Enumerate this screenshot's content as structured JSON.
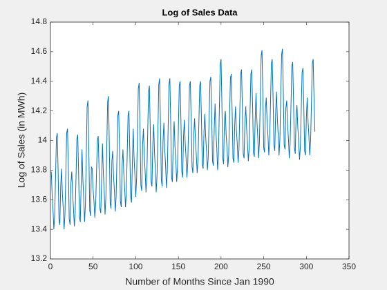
{
  "chart_data": {
    "type": "line",
    "title": "Log of Sales Data",
    "xlabel": "Number of Months Since Jan 1990",
    "ylabel": "Log of Sales (in MWh)",
    "xlim": [
      0,
      350
    ],
    "xticks": [
      0,
      50,
      100,
      150,
      200,
      250,
      300,
      350
    ],
    "ylim": [
      13.2,
      14.8
    ],
    "yticks": [
      13.2,
      13.4,
      13.6,
      13.8,
      14,
      14.2,
      14.4,
      14.6,
      14.8
    ],
    "grid": false,
    "x": [
      1,
      2,
      3,
      4,
      5,
      6,
      7,
      8,
      9,
      10,
      11,
      12,
      13,
      14,
      15,
      16,
      17,
      18,
      19,
      20,
      21,
      22,
      23,
      24,
      25,
      26,
      27,
      28,
      29,
      30,
      31,
      32,
      33,
      34,
      35,
      36,
      37,
      38,
      39,
      40,
      41,
      42,
      43,
      44,
      45,
      46,
      47,
      48,
      49,
      50,
      51,
      52,
      53,
      54,
      55,
      56,
      57,
      58,
      59,
      60,
      61,
      62,
      63,
      64,
      65,
      66,
      67,
      68,
      69,
      70,
      71,
      72,
      73,
      74,
      75,
      76,
      77,
      78,
      79,
      80,
      81,
      82,
      83,
      84,
      85,
      86,
      87,
      88,
      89,
      90,
      91,
      92,
      93,
      94,
      95,
      96,
      97,
      98,
      99,
      100,
      101,
      102,
      103,
      104,
      105,
      106,
      107,
      108,
      109,
      110,
      111,
      112,
      113,
      114,
      115,
      116,
      117,
      118,
      119,
      120,
      121,
      122,
      123,
      124,
      125,
      126,
      127,
      128,
      129,
      130,
      131,
      132,
      133,
      134,
      135,
      136,
      137,
      138,
      139,
      140,
      141,
      142,
      143,
      144,
      145,
      146,
      147,
      148,
      149,
      150,
      151,
      152,
      153,
      154,
      155,
      156,
      157,
      158,
      159,
      160,
      161,
      162,
      163,
      164,
      165,
      166,
      167,
      168,
      169,
      170,
      171,
      172,
      173,
      174,
      175,
      176,
      177,
      178,
      179,
      180,
      181,
      182,
      183,
      184,
      185,
      186,
      187,
      188,
      189,
      190,
      191,
      192,
      193,
      194,
      195,
      196,
      197,
      198,
      199,
      200,
      201,
      202,
      203,
      204,
      205,
      206,
      207,
      208,
      209,
      210,
      211,
      212,
      213,
      214,
      215,
      216,
      217,
      218,
      219,
      220,
      221,
      222,
      223,
      224,
      225,
      226,
      227,
      228,
      229,
      230,
      231,
      232,
      233,
      234,
      235,
      236,
      237,
      238,
      239,
      240,
      241,
      242,
      243,
      244,
      245,
      246,
      247,
      248,
      249,
      250,
      251,
      252,
      253,
      254,
      255,
      256,
      257,
      258,
      259,
      260,
      261,
      262,
      263,
      264,
      265,
      266,
      267,
      268,
      269,
      270,
      271,
      272,
      273,
      274,
      275,
      276,
      277,
      278,
      279,
      280,
      281,
      282,
      283,
      284,
      285,
      286,
      287,
      288,
      289,
      290,
      291,
      292,
      293,
      294,
      295,
      296,
      297,
      298,
      299,
      300,
      301,
      302,
      303,
      304,
      305,
      306,
      307,
      308,
      309,
      310
    ],
    "series": [
      {
        "name": "Log of Sales",
        "color": "#0072bd",
        "values": [
          13.79,
          13.63,
          13.53,
          13.4,
          13.5,
          13.76,
          14.02,
          14.05,
          13.79,
          13.47,
          13.43,
          13.69,
          13.81,
          13.64,
          13.54,
          13.4,
          13.5,
          13.77,
          14.05,
          14.08,
          13.81,
          13.47,
          13.43,
          13.71,
          13.79,
          13.64,
          13.54,
          13.42,
          13.51,
          13.76,
          14.01,
          14.04,
          13.79,
          13.48,
          13.45,
          13.7,
          13.94,
          13.74,
          13.61,
          13.45,
          13.57,
          13.9,
          14.23,
          14.27,
          13.94,
          13.53,
          13.49,
          13.82,
          13.81,
          13.67,
          13.59,
          13.48,
          13.56,
          13.78,
          14.0,
          14.03,
          13.81,
          13.54,
          13.51,
          13.73,
          13.98,
          13.78,
          13.66,
          13.5,
          13.62,
          13.94,
          14.26,
          14.3,
          13.98,
          13.58,
          13.54,
          13.86,
          13.93,
          13.76,
          13.66,
          13.52,
          13.62,
          13.89,
          14.17,
          14.2,
          13.93,
          13.59,
          13.55,
          13.83,
          13.94,
          13.78,
          13.68,
          13.55,
          13.65,
          13.91,
          14.17,
          14.2,
          13.94,
          13.62,
          13.58,
          13.84,
          14.08,
          13.89,
          13.77,
          13.62,
          13.74,
          14.04,
          14.35,
          14.39,
          14.08,
          13.7,
          13.66,
          13.97,
          14.08,
          13.9,
          13.79,
          13.65,
          13.76,
          14.05,
          14.33,
          14.37,
          14.08,
          13.72,
          13.69,
          13.97,
          14.11,
          13.92,
          13.8,
          13.65,
          13.77,
          14.07,
          14.38,
          14.42,
          14.11,
          13.73,
          13.69,
          14.0,
          14.12,
          13.94,
          13.83,
          13.68,
          13.79,
          14.09,
          14.38,
          14.42,
          14.12,
          13.75,
          13.72,
          14.01,
          14.13,
          13.96,
          13.86,
          13.72,
          13.82,
          14.09,
          14.37,
          14.4,
          14.13,
          13.79,
          13.75,
          14.03,
          14.14,
          13.98,
          13.88,
          13.75,
          13.85,
          14.11,
          14.37,
          14.4,
          14.14,
          13.82,
          13.78,
          14.04,
          14.15,
          14.0,
          13.9,
          13.78,
          13.87,
          14.12,
          14.37,
          14.4,
          14.15,
          13.84,
          13.81,
          14.06,
          14.18,
          14.02,
          13.93,
          13.8,
          13.89,
          14.15,
          14.4,
          14.43,
          14.18,
          13.86,
          13.83,
          14.08,
          14.25,
          14.06,
          13.95,
          13.8,
          13.91,
          14.21,
          14.51,
          14.55,
          14.25,
          13.88,
          13.84,
          14.14,
          14.2,
          14.04,
          13.95,
          13.82,
          13.91,
          14.17,
          14.42,
          14.45,
          14.2,
          13.88,
          13.85,
          14.1,
          14.23,
          14.07,
          13.98,
          13.85,
          13.94,
          14.2,
          14.45,
          14.48,
          14.23,
          13.91,
          13.88,
          14.13,
          14.23,
          14.08,
          13.98,
          13.86,
          13.95,
          14.2,
          14.45,
          14.48,
          14.23,
          13.92,
          13.89,
          14.14,
          14.32,
          14.14,
          14.03,
          13.88,
          13.99,
          14.28,
          14.57,
          14.61,
          14.32,
          13.95,
          13.92,
          14.21,
          14.29,
          14.13,
          14.03,
          13.9,
          14.0,
          14.26,
          14.52,
          14.55,
          14.29,
          13.97,
          13.93,
          14.19,
          14.33,
          14.15,
          14.04,
          13.9,
          14.01,
          14.3,
          14.58,
          14.62,
          14.33,
          13.97,
          13.94,
          14.22,
          14.27,
          14.11,
          14.01,
          13.88,
          13.98,
          14.24,
          14.5,
          14.53,
          14.27,
          13.95,
          13.91,
          14.17,
          14.24,
          14.09,
          13.99,
          13.87,
          13.96,
          14.21,
          14.46,
          14.49,
          14.24,
          13.93,
          13.9,
          14.15,
          14.29,
          14.13,
          14.03,
          13.9,
          14.0,
          14.26,
          14.52,
          14.55,
          14.29,
          14.06
        ]
      }
    ]
  }
}
